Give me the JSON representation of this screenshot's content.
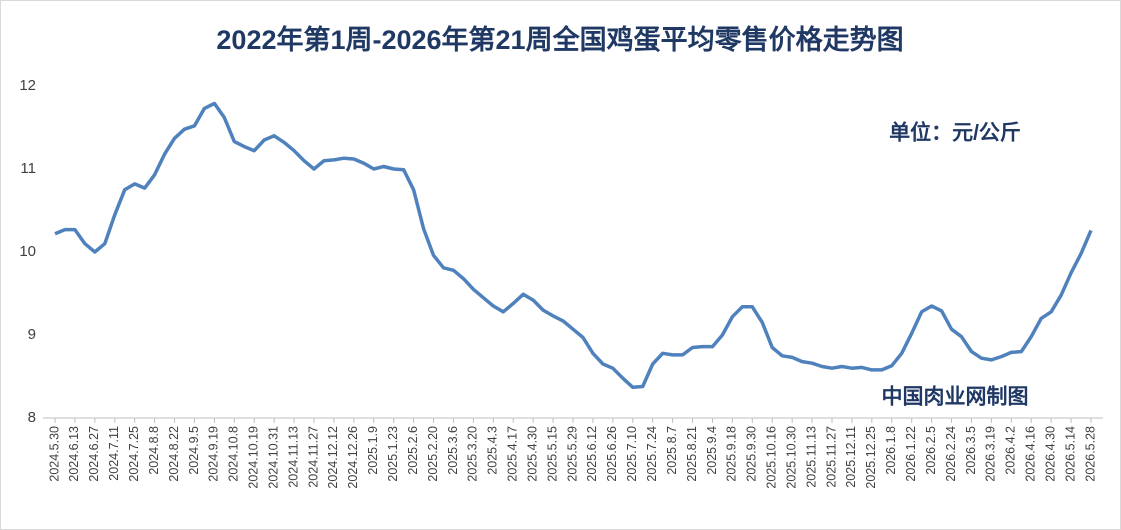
{
  "chart_data": {
    "type": "line",
    "title": "2022年第1周-2026年第21周全国鸡蛋平均零售价格走势图",
    "annotations": [
      "单位：元/公斤",
      "中国肉业网制图"
    ],
    "categories": [
      "2024.5.30",
      null,
      "2024.6.13",
      null,
      "2024.6.27",
      null,
      "2024.7.11",
      null,
      "2024.7.25",
      null,
      "2024.8.8",
      null,
      "2024.8.22",
      null,
      "2024.9.5",
      null,
      "2024.9.19",
      null,
      "2024.10.8",
      null,
      "2024.10.19",
      null,
      "2024.10.31",
      null,
      "2024.11.13",
      null,
      "2024.11.27",
      null,
      "2024.12.12",
      null,
      "2024.12.26",
      null,
      "2025.1.9",
      null,
      "2025.1.23",
      null,
      "2025.2.6",
      null,
      "2025.2.20",
      null,
      "2025.3.6",
      null,
      "2025.3.20",
      null,
      "2025.4.3",
      null,
      "2025.4.17",
      null,
      "2025.4.30",
      null,
      "2025.5.15",
      null,
      "2025.5.29",
      null,
      "2025.6.12",
      null,
      "2025.6.26",
      null,
      "2025.7.10",
      null,
      "2025.7.24",
      null,
      "2025.8.7",
      null,
      "2025.8.21",
      null,
      "2025.9.4",
      null,
      "2025.9.18",
      null,
      "2025.9.30",
      null,
      "2025.10.16",
      null,
      "2025.10.30",
      null,
      "2025.11.13",
      null,
      "2025.11.27",
      null,
      "2025.12.11",
      null,
      "2025.12.25",
      null,
      "2026.1.8",
      null,
      "2026.1.22",
      null,
      "2026.2.5",
      null,
      "2026.2.24",
      null,
      "2026.3.5",
      null,
      "2026.3.19",
      null,
      "2026.4.2",
      null,
      "2026.4.16",
      null,
      "2026.4.30",
      null,
      "2026.5.14",
      null,
      "2026.5.28"
    ],
    "series": [
      {
        "name": "全国鸡蛋平均零售价格",
        "color": "#4f81bd",
        "values": [
          10.22,
          10.27,
          10.27,
          10.1,
          10.0,
          10.1,
          10.45,
          10.75,
          10.82,
          10.77,
          10.93,
          11.18,
          11.37,
          11.48,
          11.52,
          11.73,
          11.79,
          11.62,
          11.33,
          11.27,
          11.22,
          11.35,
          11.4,
          11.32,
          11.22,
          11.1,
          11.0,
          11.1,
          11.11,
          11.13,
          11.12,
          11.07,
          11.0,
          11.03,
          11.0,
          10.99,
          10.75,
          10.28,
          9.96,
          9.81,
          9.78,
          9.68,
          9.55,
          9.45,
          9.35,
          9.28,
          9.38,
          9.49,
          9.42,
          9.3,
          9.23,
          9.17,
          9.07,
          8.97,
          8.78,
          8.65,
          8.6,
          8.48,
          8.37,
          8.38,
          8.65,
          8.78,
          8.76,
          8.76,
          8.85,
          8.86,
          8.86,
          9.0,
          9.22,
          9.34,
          9.34,
          9.15,
          8.85,
          8.75,
          8.73,
          8.68,
          8.66,
          8.62,
          8.6,
          8.62,
          8.6,
          8.61,
          8.58,
          8.58,
          8.63,
          8.78,
          9.02,
          9.28,
          9.35,
          9.29,
          9.07,
          8.98,
          8.8,
          8.72,
          8.7,
          8.74,
          8.79,
          8.8,
          8.98,
          9.2,
          9.28,
          9.48,
          9.75,
          9.98,
          10.26
        ]
      }
    ],
    "ylim": [
      8,
      12
    ],
    "yticks": [
      8,
      9,
      10,
      11,
      12
    ],
    "grid": false
  }
}
